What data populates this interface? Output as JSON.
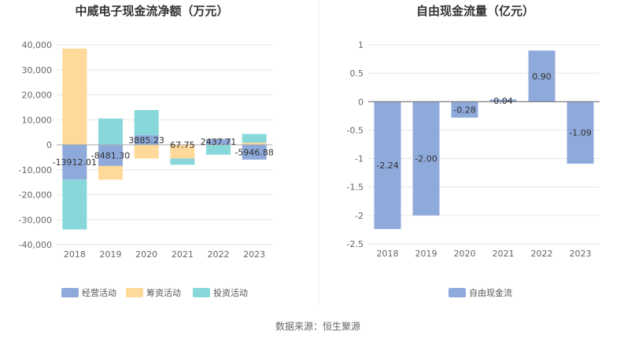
{
  "chart_data": [
    {
      "type": "bar",
      "stacked": true,
      "title": "中威电子现金流净额（万元）",
      "xlabel": "",
      "ylabel": "",
      "categories": [
        "2018",
        "2019",
        "2020",
        "2021",
        "2022",
        "2023"
      ],
      "ylim": [
        -40000,
        40000
      ],
      "yticks": [
        40000,
        30000,
        20000,
        10000,
        0,
        -10000,
        -20000,
        -30000,
        -40000
      ],
      "ytick_labels": [
        "40,000",
        "30,000",
        "20,000",
        "10,000",
        "0",
        "-10,000",
        "-20,000",
        "-30,000",
        "-40,000"
      ],
      "grid": true,
      "legend_position": "bottom",
      "series": [
        {
          "name": "经营活动",
          "color": "#8eaadb",
          "values": [
            -13912.01,
            -8481.3,
            3885.23,
            67.75,
            2437.71,
            -5946.88
          ]
        },
        {
          "name": "筹资活动",
          "color": "#ffd99a",
          "values": [
            38500,
            -5500,
            -5500,
            -5500,
            0,
            800
          ]
        },
        {
          "name": "投资活动",
          "color": "#88d8db",
          "values": [
            -20000,
            10500,
            10000,
            -2500,
            -4000,
            3500
          ]
        }
      ],
      "data_labels": [
        "-13912.01",
        "-8481.30",
        "3885.23",
        "67.75",
        "2437.71",
        "-5946.88"
      ]
    },
    {
      "type": "bar",
      "title": "自由现金流量（亿元）",
      "xlabel": "",
      "ylabel": "",
      "categories": [
        "2018",
        "2019",
        "2020",
        "2021",
        "2022",
        "2023"
      ],
      "ylim": [
        -2.5,
        1
      ],
      "yticks": [
        1,
        0.5,
        0,
        -0.5,
        -1,
        -1.5,
        -2,
        -2.5
      ],
      "ytick_labels": [
        "1",
        "0.5",
        "0",
        "-0.5",
        "-1",
        "-1.5",
        "-2",
        "-2.5"
      ],
      "grid": true,
      "legend_position": "bottom",
      "series": [
        {
          "name": "自由现金流",
          "color": "#8eaadb",
          "values": [
            -2.24,
            -2.0,
            -0.28,
            0.04,
            0.9,
            -1.09
          ]
        }
      ],
      "data_labels": [
        "-2.24",
        "-2.00",
        "-0.28",
        "0.04",
        "0.90",
        "-1.09"
      ]
    }
  ],
  "source_text": "数据来源：恒生聚源"
}
